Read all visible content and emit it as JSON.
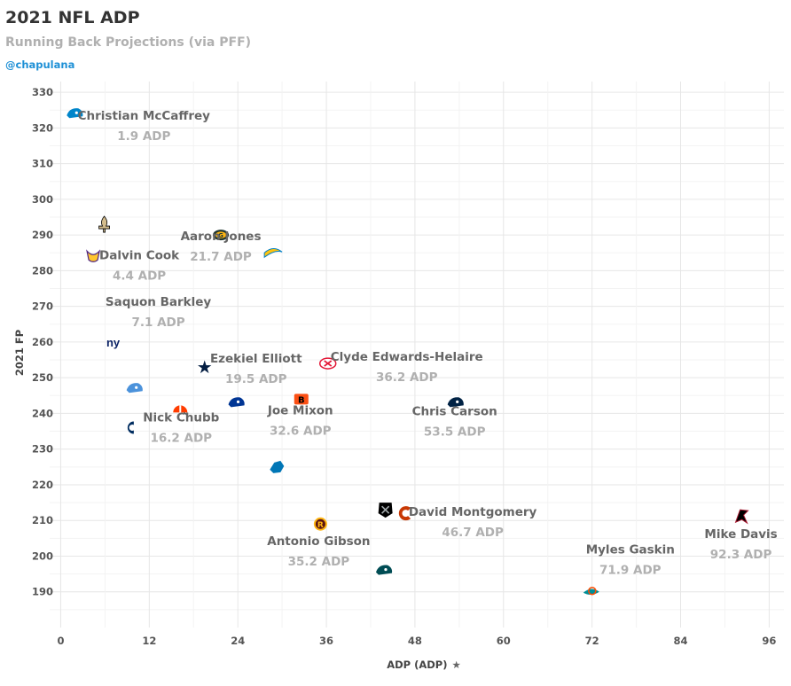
{
  "header": {
    "title": "2021 NFL ADP",
    "subtitle": "Running Back Projections (via PFF)",
    "credit": "@chapulana"
  },
  "chart_data": {
    "type": "scatter",
    "title": "2021 NFL ADP",
    "subtitle": "Running Back Projections (via PFF)",
    "xlabel": "ADP (ADP)",
    "ylabel": "2021 FP",
    "xlim": [
      -1.5,
      98
    ],
    "ylim": [
      180,
      333
    ],
    "x_ticks": [
      0,
      12,
      24,
      36,
      48,
      60,
      72,
      84,
      96
    ],
    "y_ticks": [
      190,
      200,
      210,
      220,
      230,
      240,
      250,
      260,
      270,
      280,
      290,
      300,
      310,
      320,
      330
    ],
    "grid": true,
    "points": [
      {
        "team": "CAR",
        "x": 1.9,
        "y": 324,
        "color": "#0085CA",
        "label": "Christian McCaffrey",
        "adp_label": "1.9 ADP"
      },
      {
        "team": "NO",
        "x": 5.9,
        "y": 293,
        "color": "#D3BC8D"
      },
      {
        "team": "MIN",
        "x": 4.4,
        "y": 284,
        "color": "#4F2683",
        "label": "Dalvin Cook",
        "adp_label": "4.4 ADP"
      },
      {
        "team": "NYG",
        "x": 7.1,
        "y": 260,
        "color": "#0B2265",
        "label": "Saquon Barkley",
        "adp_label": "7.1 ADP"
      },
      {
        "team": "TEN",
        "x": 10.0,
        "y": 247,
        "color": "#4B92DB"
      },
      {
        "team": "IND",
        "x": 9.3,
        "y": 236,
        "color": "#002C5F"
      },
      {
        "team": "CLE",
        "x": 16.2,
        "y": 241,
        "color": "#FF3C00",
        "label": "Nick Chubb",
        "adp_label": "16.2 ADP"
      },
      {
        "team": "DAL",
        "x": 19.5,
        "y": 253,
        "color": "#041E42",
        "label": "Ezekiel Elliott",
        "adp_label": "19.5 ADP"
      },
      {
        "team": "GB",
        "x": 21.7,
        "y": 290,
        "color": "#203731",
        "label": "Aaron Jones",
        "adp_label": "21.7 ADP"
      },
      {
        "team": "LAR",
        "x": 23.8,
        "y": 243,
        "color": "#003594"
      },
      {
        "team": "LAC",
        "x": 28.8,
        "y": 285,
        "color": "#FFC20E"
      },
      {
        "team": "DET",
        "x": 29.3,
        "y": 225,
        "color": "#0076B6"
      },
      {
        "team": "CIN",
        "x": 32.6,
        "y": 244,
        "color": "#FB4F14",
        "label": "Joe Mixon",
        "adp_label": "32.6 ADP"
      },
      {
        "team": "WAS",
        "x": 35.2,
        "y": 209,
        "color": "#5A1414",
        "label": "Antonio Gibson",
        "adp_label": "35.2 ADP"
      },
      {
        "team": "KC",
        "x": 36.2,
        "y": 254,
        "color": "#E31837",
        "label": "Clyde Edwards-Helaire",
        "adp_label": "36.2 ADP"
      },
      {
        "team": "LV",
        "x": 44.0,
        "y": 213,
        "color": "#000000"
      },
      {
        "team": "PHI",
        "x": 43.8,
        "y": 196,
        "color": "#004C54"
      },
      {
        "team": "CHI",
        "x": 46.7,
        "y": 212,
        "color": "#C83803",
        "label": "David Montgomery",
        "adp_label": "46.7 ADP"
      },
      {
        "team": "SEA",
        "x": 53.5,
        "y": 243,
        "color": "#002244",
        "label": "Chris Carson",
        "adp_label": "53.5 ADP"
      },
      {
        "team": "MIA",
        "x": 71.9,
        "y": 190,
        "color": "#008E97",
        "label": "Myles Gaskin",
        "adp_label": "71.9 ADP"
      },
      {
        "team": "ATL",
        "x": 92.3,
        "y": 211,
        "color": "#A71930",
        "label": "Mike Davis",
        "adp_label": "92.3 ADP"
      }
    ]
  }
}
